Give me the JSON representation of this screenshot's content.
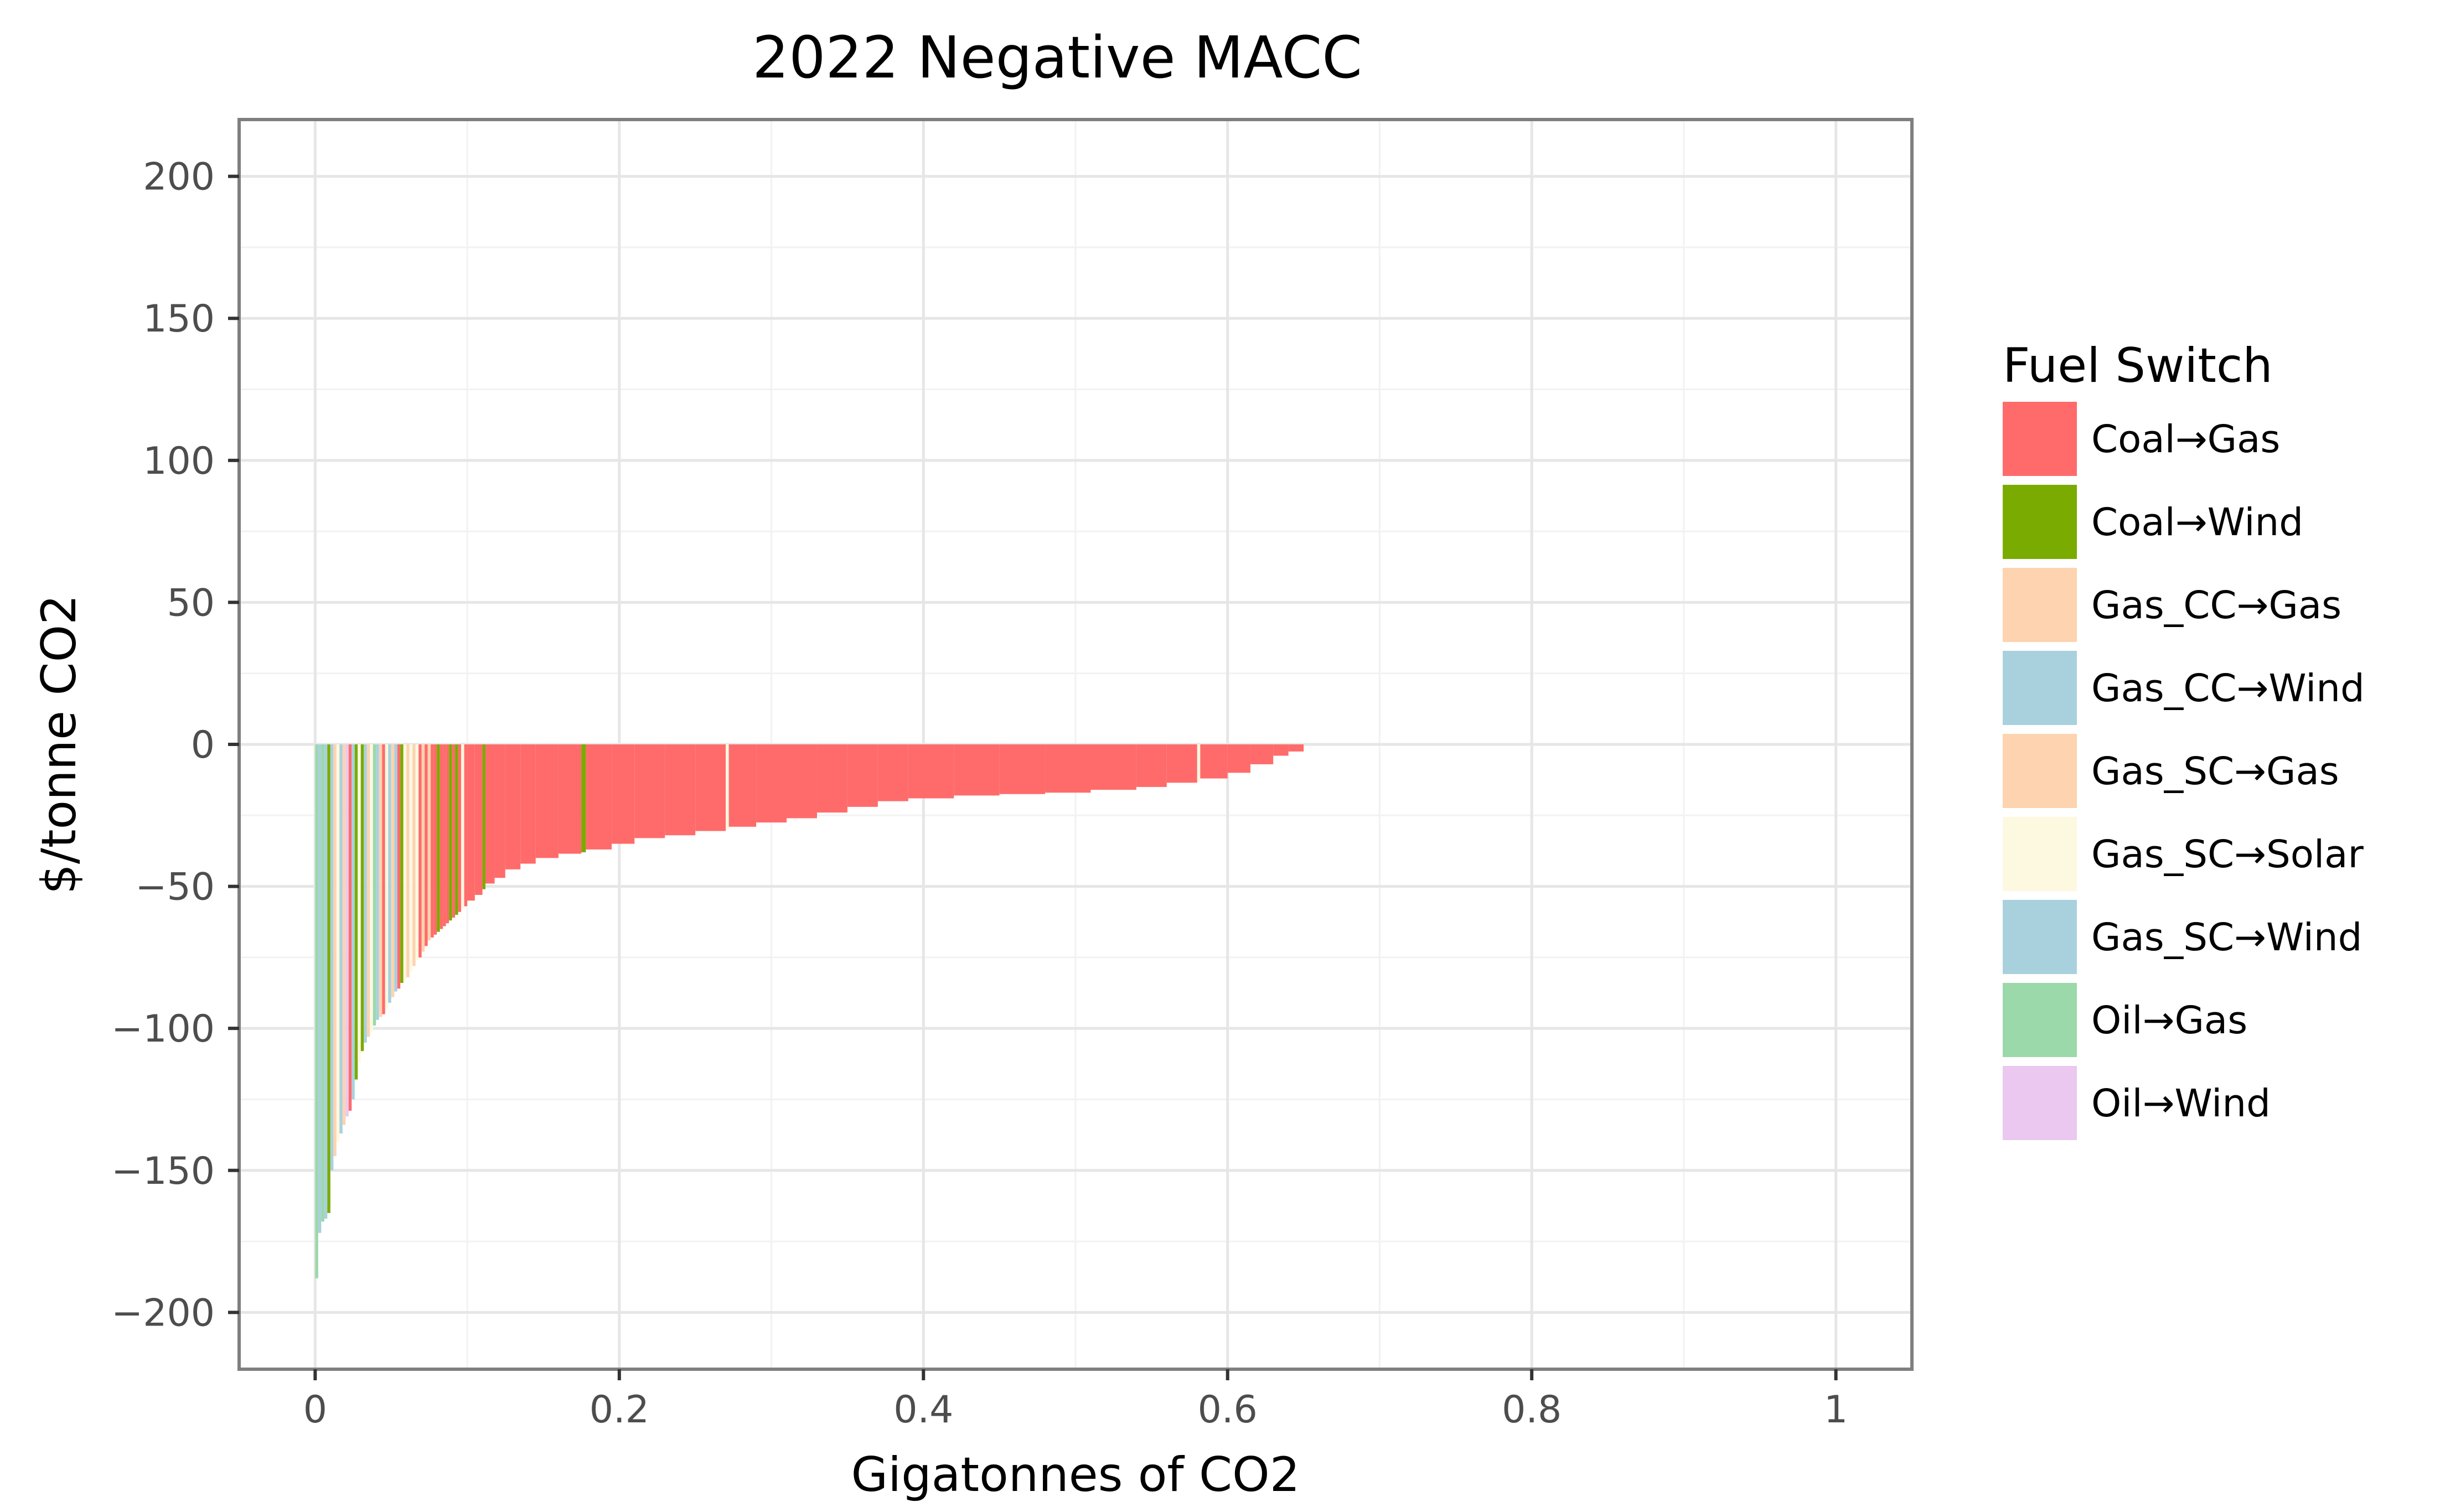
{
  "chart_data": {
    "type": "bar",
    "title": "2022 Negative MACC",
    "xlabel": "Gigatonnes of CO2",
    "ylabel": "$/tonne CO2",
    "xlim": [
      -0.05,
      1.05
    ],
    "ylim": [
      -220,
      220
    ],
    "x_ticks": [
      {
        "value": 0,
        "label": "0"
      },
      {
        "value": 0.2,
        "label": "0.2"
      },
      {
        "value": 0.4,
        "label": "0.4"
      },
      {
        "value": 0.6,
        "label": "0.6"
      },
      {
        "value": 0.8,
        "label": "0.8"
      },
      {
        "value": 1.0,
        "label": "1"
      }
    ],
    "y_ticks": [
      {
        "value": 200,
        "label": "200"
      },
      {
        "value": 150,
        "label": "150"
      },
      {
        "value": 100,
        "label": "100"
      },
      {
        "value": 50,
        "label": "50"
      },
      {
        "value": 0,
        "label": "0"
      },
      {
        "value": -50,
        "label": "−50"
      },
      {
        "value": -100,
        "label": "−100"
      },
      {
        "value": -150,
        "label": "−150"
      },
      {
        "value": -200,
        "label": "−200"
      }
    ],
    "grid": true,
    "legend": {
      "title": "Fuel Switch",
      "position": "right",
      "entries": [
        {
          "name": "Coal→Gas",
          "color": "#ff6b6b"
        },
        {
          "name": "Coal→Wind",
          "color": "#7aab00"
        },
        {
          "name": "Gas_CC→Gas",
          "color": "#fdd3b0"
        },
        {
          "name": "Gas_CC→Wind",
          "color": "#a8d1dd"
        },
        {
          "name": "Gas_SC→Gas",
          "color": "#fdd3b0"
        },
        {
          "name": "Gas_SC→Solar",
          "color": "#fdf8e0"
        },
        {
          "name": "Gas_SC→Wind",
          "color": "#a8d1dd"
        },
        {
          "name": "Oil→Gas",
          "color": "#9bd8aa"
        },
        {
          "name": "Oil→Wind",
          "color": "#eac8ef"
        }
      ]
    },
    "bars": [
      {
        "x0": 0.0,
        "x1": 0.002,
        "y": -188,
        "fuel": "Oil→Gas"
      },
      {
        "x0": 0.002,
        "x1": 0.004,
        "y": -172,
        "fuel": "Gas_SC→Wind"
      },
      {
        "x0": 0.004,
        "x1": 0.006,
        "y": -168,
        "fuel": "Oil→Gas"
      },
      {
        "x0": 0.006,
        "x1": 0.008,
        "y": -167,
        "fuel": "Gas_CC→Wind"
      },
      {
        "x0": 0.008,
        "x1": 0.01,
        "y": -165,
        "fuel": "Coal→Wind"
      },
      {
        "x0": 0.01,
        "x1": 0.012,
        "y": -150,
        "fuel": "Gas_SC→Wind"
      },
      {
        "x0": 0.012,
        "x1": 0.014,
        "y": -145,
        "fuel": "Gas_CC→Gas"
      },
      {
        "x0": 0.014,
        "x1": 0.016,
        "y": -140,
        "fuel": "Gas_SC→Solar"
      },
      {
        "x0": 0.016,
        "x1": 0.018,
        "y": -137,
        "fuel": "Gas_CC→Wind"
      },
      {
        "x0": 0.018,
        "x1": 0.02,
        "y": -134,
        "fuel": "Gas_SC→Gas"
      },
      {
        "x0": 0.02,
        "x1": 0.022,
        "y": -131,
        "fuel": "Oil→Wind"
      },
      {
        "x0": 0.022,
        "x1": 0.024,
        "y": -129,
        "fuel": "Coal→Gas"
      },
      {
        "x0": 0.024,
        "x1": 0.026,
        "y": -125,
        "fuel": "Gas_CC→Wind"
      },
      {
        "x0": 0.026,
        "x1": 0.028,
        "y": -118,
        "fuel": "Coal→Wind"
      },
      {
        "x0": 0.028,
        "x1": 0.03,
        "y": -112,
        "fuel": "Gas_SC→Solar"
      },
      {
        "x0": 0.03,
        "x1": 0.032,
        "y": -108,
        "fuel": "Coal→Wind"
      },
      {
        "x0": 0.032,
        "x1": 0.034,
        "y": -105,
        "fuel": "Gas_SC→Wind"
      },
      {
        "x0": 0.034,
        "x1": 0.036,
        "y": -103,
        "fuel": "Gas_CC→Gas"
      },
      {
        "x0": 0.036,
        "x1": 0.038,
        "y": -101,
        "fuel": "Gas_SC→Solar"
      },
      {
        "x0": 0.038,
        "x1": 0.04,
        "y": -99,
        "fuel": "Oil→Gas"
      },
      {
        "x0": 0.04,
        "x1": 0.042,
        "y": -97,
        "fuel": "Gas_SC→Wind"
      },
      {
        "x0": 0.042,
        "x1": 0.044,
        "y": -96,
        "fuel": "Gas_CC→Gas"
      },
      {
        "x0": 0.044,
        "x1": 0.046,
        "y": -95,
        "fuel": "Coal→Gas"
      },
      {
        "x0": 0.046,
        "x1": 0.048,
        "y": -93,
        "fuel": "Gas_SC→Solar"
      },
      {
        "x0": 0.048,
        "x1": 0.05,
        "y": -91,
        "fuel": "Gas_CC→Wind"
      },
      {
        "x0": 0.05,
        "x1": 0.052,
        "y": -89,
        "fuel": "Gas_SC→Gas"
      },
      {
        "x0": 0.052,
        "x1": 0.054,
        "y": -87,
        "fuel": "Gas_CC→Wind"
      },
      {
        "x0": 0.054,
        "x1": 0.056,
        "y": -86,
        "fuel": "Coal→Gas"
      },
      {
        "x0": 0.056,
        "x1": 0.058,
        "y": -84,
        "fuel": "Coal→Wind"
      },
      {
        "x0": 0.058,
        "x1": 0.06,
        "y": -83,
        "fuel": "Gas_SC→Solar"
      },
      {
        "x0": 0.06,
        "x1": 0.062,
        "y": -82,
        "fuel": "Gas_CC→Gas"
      },
      {
        "x0": 0.062,
        "x1": 0.064,
        "y": -80,
        "fuel": "Gas_SC→Solar"
      },
      {
        "x0": 0.064,
        "x1": 0.066,
        "y": -78,
        "fuel": "Gas_SC→Gas"
      },
      {
        "x0": 0.066,
        "x1": 0.068,
        "y": -76,
        "fuel": "Gas_SC→Solar"
      },
      {
        "x0": 0.068,
        "x1": 0.07,
        "y": -75,
        "fuel": "Coal→Gas"
      },
      {
        "x0": 0.07,
        "x1": 0.072,
        "y": -73,
        "fuel": "Gas_CC→Gas"
      },
      {
        "x0": 0.072,
        "x1": 0.074,
        "y": -71,
        "fuel": "Coal→Gas"
      },
      {
        "x0": 0.074,
        "x1": 0.076,
        "y": -69,
        "fuel": "Gas_SC→Gas"
      },
      {
        "x0": 0.076,
        "x1": 0.078,
        "y": -68,
        "fuel": "Coal→Gas"
      },
      {
        "x0": 0.078,
        "x1": 0.08,
        "y": -67,
        "fuel": "Coal→Gas"
      },
      {
        "x0": 0.08,
        "x1": 0.082,
        "y": -66,
        "fuel": "Coal→Wind"
      },
      {
        "x0": 0.082,
        "x1": 0.084,
        "y": -65,
        "fuel": "Coal→Gas"
      },
      {
        "x0": 0.084,
        "x1": 0.086,
        "y": -64,
        "fuel": "Coal→Gas"
      },
      {
        "x0": 0.086,
        "x1": 0.088,
        "y": -63,
        "fuel": "Coal→Gas"
      },
      {
        "x0": 0.088,
        "x1": 0.09,
        "y": -62,
        "fuel": "Coal→Wind"
      },
      {
        "x0": 0.09,
        "x1": 0.092,
        "y": -61,
        "fuel": "Coal→Gas"
      },
      {
        "x0": 0.092,
        "x1": 0.094,
        "y": -60,
        "fuel": "Coal→Wind"
      },
      {
        "x0": 0.094,
        "x1": 0.096,
        "y": -59,
        "fuel": "Coal→Gas"
      },
      {
        "x0": 0.096,
        "x1": 0.098,
        "y": -58,
        "fuel": "Gas_SC→Solar"
      },
      {
        "x0": 0.098,
        "x1": 0.1,
        "y": -57,
        "fuel": "Coal→Gas"
      },
      {
        "x0": 0.1,
        "x1": 0.105,
        "y": -55,
        "fuel": "Coal→Gas"
      },
      {
        "x0": 0.105,
        "x1": 0.11,
        "y": -53,
        "fuel": "Coal→Gas"
      },
      {
        "x0": 0.11,
        "x1": 0.112,
        "y": -51,
        "fuel": "Coal→Wind"
      },
      {
        "x0": 0.112,
        "x1": 0.118,
        "y": -49,
        "fuel": "Coal→Gas"
      },
      {
        "x0": 0.118,
        "x1": 0.125,
        "y": -47,
        "fuel": "Coal→Gas"
      },
      {
        "x0": 0.125,
        "x1": 0.135,
        "y": -44,
        "fuel": "Coal→Gas"
      },
      {
        "x0": 0.135,
        "x1": 0.145,
        "y": -42,
        "fuel": "Coal→Gas"
      },
      {
        "x0": 0.145,
        "x1": 0.16,
        "y": -40,
        "fuel": "Coal→Gas"
      },
      {
        "x0": 0.16,
        "x1": 0.175,
        "y": -38.5,
        "fuel": "Coal→Gas"
      },
      {
        "x0": 0.175,
        "x1": 0.178,
        "y": -38,
        "fuel": "Coal→Wind"
      },
      {
        "x0": 0.178,
        "x1": 0.195,
        "y": -37,
        "fuel": "Coal→Gas"
      },
      {
        "x0": 0.195,
        "x1": 0.21,
        "y": -35,
        "fuel": "Coal→Gas"
      },
      {
        "x0": 0.21,
        "x1": 0.23,
        "y": -33,
        "fuel": "Coal→Gas"
      },
      {
        "x0": 0.23,
        "x1": 0.25,
        "y": -32,
        "fuel": "Coal→Gas"
      },
      {
        "x0": 0.25,
        "x1": 0.27,
        "y": -30.5,
        "fuel": "Coal→Gas"
      },
      {
        "x0": 0.27,
        "x1": 0.272,
        "y": -30,
        "fuel": "Gas_SC→Solar"
      },
      {
        "x0": 0.272,
        "x1": 0.29,
        "y": -29,
        "fuel": "Coal→Gas"
      },
      {
        "x0": 0.29,
        "x1": 0.31,
        "y": -27.5,
        "fuel": "Coal→Gas"
      },
      {
        "x0": 0.31,
        "x1": 0.33,
        "y": -26,
        "fuel": "Coal→Gas"
      },
      {
        "x0": 0.33,
        "x1": 0.35,
        "y": -24,
        "fuel": "Coal→Gas"
      },
      {
        "x0": 0.35,
        "x1": 0.37,
        "y": -22,
        "fuel": "Coal→Gas"
      },
      {
        "x0": 0.37,
        "x1": 0.39,
        "y": -20,
        "fuel": "Coal→Gas"
      },
      {
        "x0": 0.39,
        "x1": 0.42,
        "y": -19,
        "fuel": "Coal→Gas"
      },
      {
        "x0": 0.42,
        "x1": 0.45,
        "y": -18,
        "fuel": "Coal→Gas"
      },
      {
        "x0": 0.45,
        "x1": 0.48,
        "y": -17.5,
        "fuel": "Coal→Gas"
      },
      {
        "x0": 0.48,
        "x1": 0.51,
        "y": -17,
        "fuel": "Coal→Gas"
      },
      {
        "x0": 0.51,
        "x1": 0.54,
        "y": -16,
        "fuel": "Coal→Gas"
      },
      {
        "x0": 0.54,
        "x1": 0.56,
        "y": -15,
        "fuel": "Coal→Gas"
      },
      {
        "x0": 0.56,
        "x1": 0.58,
        "y": -13.5,
        "fuel": "Coal→Gas"
      },
      {
        "x0": 0.58,
        "x1": 0.582,
        "y": -13,
        "fuel": "Gas_SC→Solar"
      },
      {
        "x0": 0.582,
        "x1": 0.6,
        "y": -12,
        "fuel": "Coal→Gas"
      },
      {
        "x0": 0.6,
        "x1": 0.615,
        "y": -10,
        "fuel": "Coal→Gas"
      },
      {
        "x0": 0.615,
        "x1": 0.63,
        "y": -7,
        "fuel": "Coal→Gas"
      },
      {
        "x0": 0.63,
        "x1": 0.64,
        "y": -4,
        "fuel": "Coal→Gas"
      },
      {
        "x0": 0.64,
        "x1": 0.65,
        "y": -2.5,
        "fuel": "Coal→Gas"
      }
    ]
  }
}
